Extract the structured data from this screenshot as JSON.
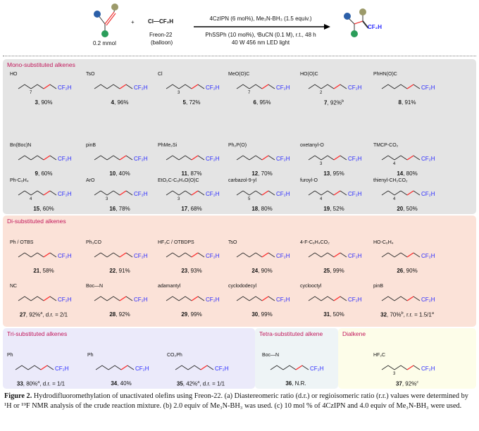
{
  "header": {
    "substrate_amount": "0.2 mmol",
    "plus": "+",
    "reagent": "Cl—CF₂H",
    "reagent_name": "Freon-22",
    "reagent_note": "(balloon)",
    "conditions_top": "4CzIPN (6 mol%), Me₃N-BH₃ (1.5 equiv.)",
    "conditions_bottom1": "PhSSPh (10 mol%), ᵗBuCN (0.1 M), r.t., 48 h",
    "conditions_bottom2": "40 W 456 nm LED light",
    "product_group": "CF₂H"
  },
  "colors": {
    "mono": "#e4e4e4",
    "di": "#fbe2d8",
    "tri": "#ebeafa",
    "tetra": "#eef4f6",
    "dialkene": "#fdfde9",
    "title": "#c2185b",
    "cf2h": "#2a2aff",
    "bond": "#ff2a2a"
  },
  "sections": [
    {
      "key": "mono",
      "title": "Mono-substituted alkenes",
      "compounds": [
        {
          "id": "3",
          "yield": "90%",
          "frag": "HO",
          "sub": "7"
        },
        {
          "id": "4",
          "yield": "96%",
          "frag": "TsO"
        },
        {
          "id": "5",
          "yield": "72%",
          "frag": "Cl",
          "sub": "3"
        },
        {
          "id": "6",
          "yield": "95%",
          "frag": "MeO(O)C",
          "sub": "7"
        },
        {
          "id": "7",
          "yield": "92%",
          "note": "b",
          "frag": "HO(O)C",
          "sub": "2"
        },
        {
          "id": "8",
          "yield": "91%",
          "frag": "PhHN(O)C"
        },
        {
          "id": "9",
          "yield": "60%",
          "frag": "Bn(Boc)N"
        },
        {
          "id": "10",
          "yield": "40%",
          "frag": "pinB"
        },
        {
          "id": "11",
          "yield": "87%",
          "frag": "PhMe₂Si"
        },
        {
          "id": "12",
          "yield": "70%",
          "frag": "Ph₂P(O)"
        },
        {
          "id": "13",
          "yield": "95%",
          "frag": "oxetanyl-O",
          "sub": "3"
        },
        {
          "id": "14",
          "yield": "80%",
          "frag": "TMCP-CO₂",
          "sub": "4"
        },
        {
          "id": "15",
          "yield": "60%",
          "frag": "Ph-C₆H₄",
          "sub": "4"
        },
        {
          "id": "16",
          "yield": "78%",
          "frag": "ArO",
          "sub": "3"
        },
        {
          "id": "17",
          "yield": "68%",
          "frag": "EtO₂C-C₆H₄O(O)C",
          "sub": "3"
        },
        {
          "id": "18",
          "yield": "80%",
          "frag": "carbazol-9-yl",
          "sub": "5"
        },
        {
          "id": "19",
          "yield": "52%",
          "frag": "furoyl-O",
          "sub": "4"
        },
        {
          "id": "20",
          "yield": "50%",
          "frag": "thienyl-CH₂CO₂",
          "sub": "4"
        }
      ]
    },
    {
      "key": "di",
      "title": "Di-substituted alkenes",
      "compounds": [
        {
          "id": "21",
          "yield": "58%",
          "frag": "Ph / OTBS"
        },
        {
          "id": "22",
          "yield": "91%",
          "frag": "Ph₃CO"
        },
        {
          "id": "23",
          "yield": "93%",
          "frag": "HF₂C / OTBDPS"
        },
        {
          "id": "24",
          "yield": "90%",
          "frag": "TsO"
        },
        {
          "id": "25",
          "yield": "99%",
          "frag": "4-F-C₆H₄CO₂"
        },
        {
          "id": "26",
          "yield": "90%",
          "frag": "HO-C₆H₄"
        },
        {
          "id": "27",
          "yield": "92%",
          "extra": ", d.r. = 2/1",
          "note": "a",
          "frag": "NC"
        },
        {
          "id": "28",
          "yield": "92%",
          "frag": "Boc—N"
        },
        {
          "id": "29",
          "yield": "99%",
          "frag": "adamantyl"
        },
        {
          "id": "30",
          "yield": "99%",
          "frag": "cyclododecyl"
        },
        {
          "id": "31",
          "yield": "50%",
          "frag": "cyclooctyl"
        },
        {
          "id": "32",
          "yield": "70%",
          "note": "b",
          "extra": ", r.r. = 1.5/1",
          "note2": "a",
          "frag": "pinB"
        }
      ]
    },
    {
      "key": "tri",
      "title": "Tri-substituted alkenes",
      "compounds": [
        {
          "id": "33",
          "yield": "80%",
          "extra": ", d.r. = 1/1",
          "note": "a",
          "frag": "Ph"
        },
        {
          "id": "34",
          "yield": "40%",
          "frag": "Ph"
        },
        {
          "id": "35",
          "yield": "42%",
          "extra": ", d.r. = 1/1",
          "note": "a",
          "frag": "CO₂Ph"
        }
      ]
    },
    {
      "key": "tetra",
      "title": "Tetra-substituted alkene",
      "compounds": [
        {
          "id": "36",
          "yield": "N.R.",
          "frag": "Boc—N"
        }
      ]
    },
    {
      "key": "dialkene",
      "title": "Dialkene",
      "compounds": [
        {
          "id": "37",
          "yield": "92%",
          "note": "c",
          "frag": "HF₂C",
          "sub": "3"
        }
      ]
    }
  ],
  "caption": {
    "label": "Figure 2.",
    "text": " Hydrodifluoromethylation of unactivated olefins using Freon-22. (a) Diastereomeric ratio (d.r.) or regioisomeric ratio (r.r.) values were determined by ¹H or ¹⁹F NMR analysis of the crude reaction mixture. (b) 2.0 equiv of Me₃N-BH₃ was used. (c) 10 mol % of 4CzIPN and 4.0 equiv of Me₃N-BH₃ were used."
  }
}
